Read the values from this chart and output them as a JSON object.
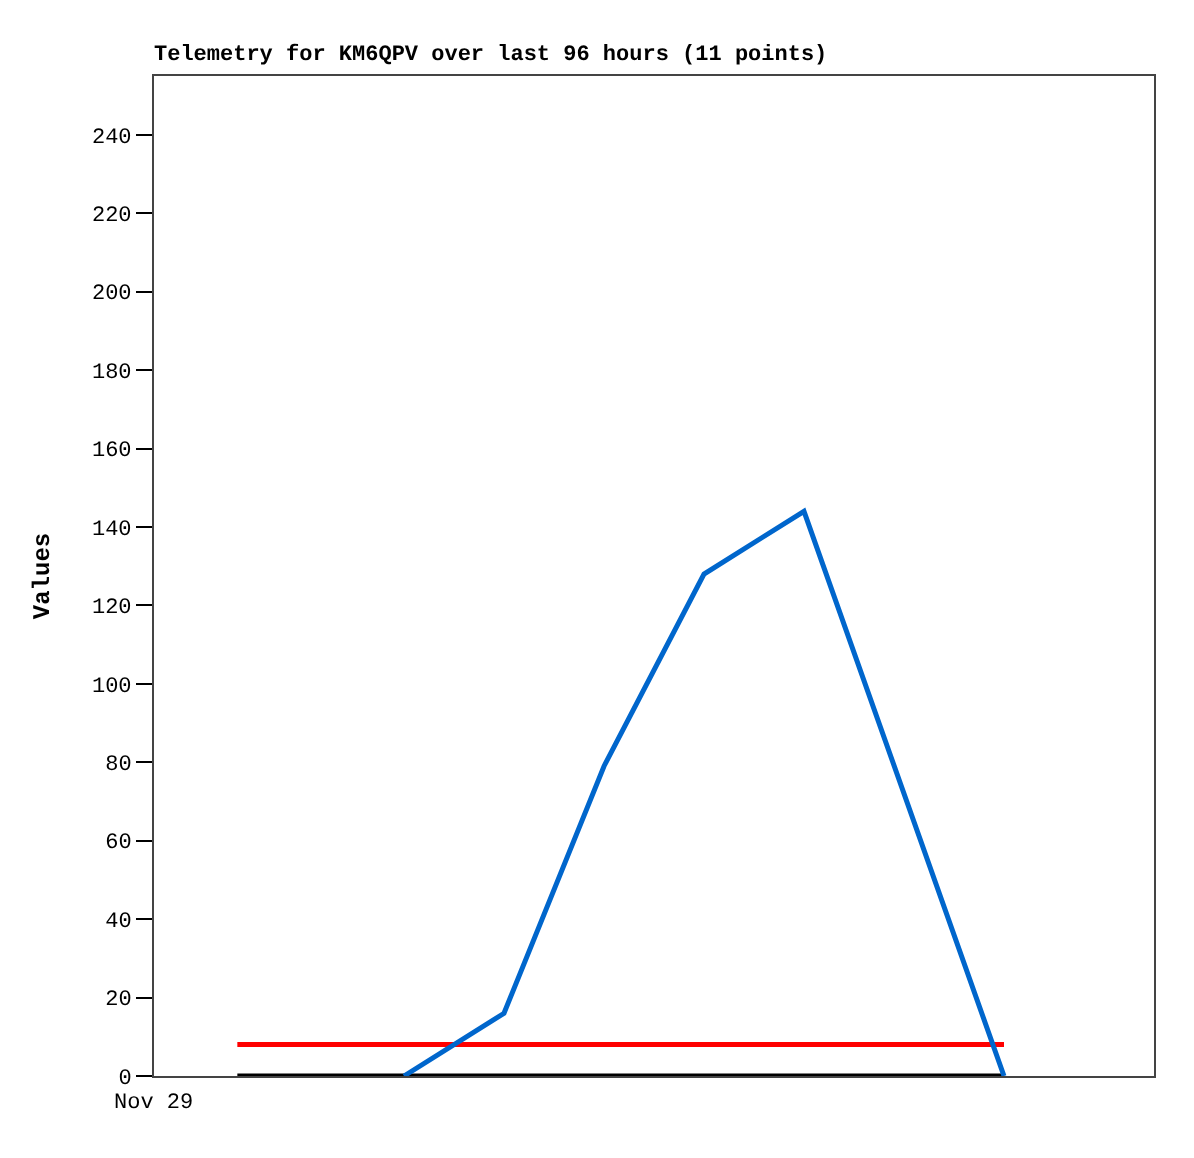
{
  "chart_data": {
    "type": "line",
    "title": "Telemetry for KM6QPV over last 96 hours (11 points)",
    "ylabel": "Values",
    "annotations": [
      "Nov 29"
    ],
    "categories": [
      null,
      null,
      null,
      null,
      null,
      null,
      null,
      null,
      null,
      null,
      null,
      null,
      null,
      null,
      null,
      null,
      null,
      null,
      null,
      null,
      null,
      null,
      null,
      null,
      null,
      null,
      null,
      null,
      null,
      null
    ],
    "ylim": [
      0,
      255
    ],
    "yticks": [
      0,
      20,
      40,
      60,
      80,
      100,
      120,
      140,
      160,
      180,
      200,
      220,
      240
    ],
    "marker": "none",
    "line_style": "solid",
    "series": [
      {
        "color": "#000000",
        "values": [
          null,
          null,
          0,
          null,
          null,
          null,
          null,
          null,
          null,
          null,
          null,
          null,
          null,
          null,
          null,
          null,
          null,
          null,
          null,
          null,
          null,
          null,
          null,
          null,
          null,
          0,
          null,
          null,
          null,
          null
        ]
      },
      {
        "color": "#ff0000",
        "values": [
          null,
          null,
          8,
          null,
          null,
          null,
          null,
          null,
          null,
          null,
          null,
          null,
          null,
          null,
          null,
          null,
          null,
          null,
          null,
          null,
          null,
          null,
          null,
          null,
          null,
          8,
          null,
          null,
          null,
          null
        ]
      },
      {
        "color": "#0066cc",
        "values": [
          null,
          null,
          null,
          null,
          null,
          null,
          null,
          0,
          null,
          null,
          16,
          null,
          null,
          79,
          null,
          null,
          128,
          null,
          null,
          144,
          null,
          null,
          null,
          null,
          null,
          0,
          null,
          null,
          null,
          null
        ]
      }
    ]
  }
}
